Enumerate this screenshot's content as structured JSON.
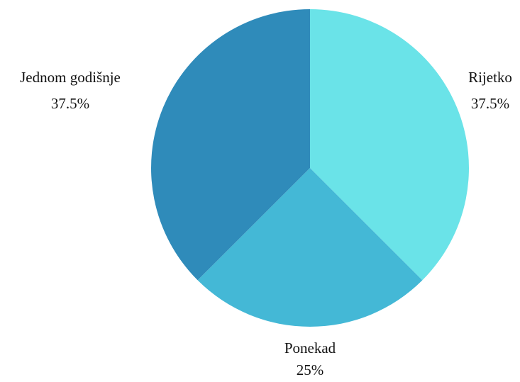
{
  "chart_data": {
    "type": "pie",
    "slices": [
      {
        "label": "Rijetko",
        "value": 37.5,
        "percent_label": "37.5%",
        "color": "#6ae3e8"
      },
      {
        "label": "Ponekad",
        "value": 25,
        "percent_label": "25%",
        "color": "#44b8d6"
      },
      {
        "label": "Jednom godišnje",
        "value": 37.5,
        "percent_label": "37.5%",
        "color": "#2f8bba"
      }
    ],
    "start_angle": "12 o'clock",
    "direction": "clockwise",
    "legend": "none",
    "labels": "outside slices, category name above percentage"
  }
}
